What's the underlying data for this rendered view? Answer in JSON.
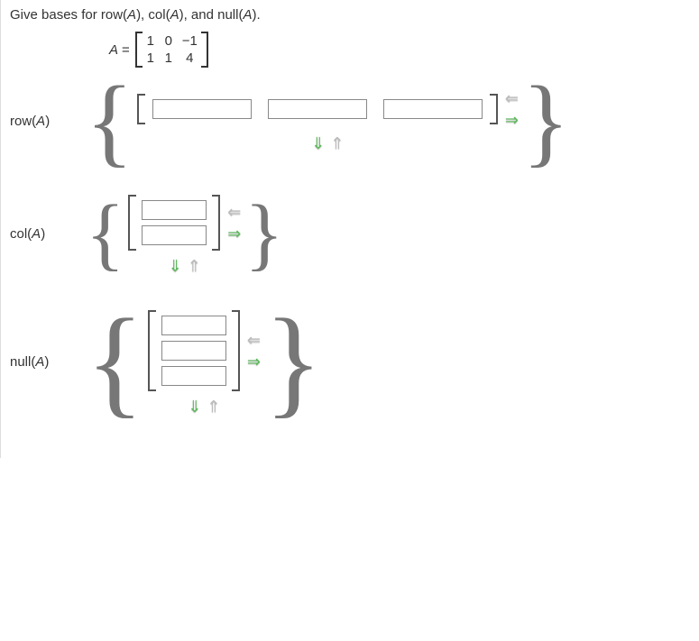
{
  "prompt": {
    "prefix": "Give bases for row(",
    "var1": "A",
    "mid1": "), col(",
    "var2": "A",
    "mid2": "), and null(",
    "var3": "A",
    "suffix": ")."
  },
  "matrixDef": {
    "name": "A",
    "eq": "=",
    "rows": [
      [
        "1",
        "0",
        "−1"
      ],
      [
        "1",
        "1",
        "4"
      ]
    ]
  },
  "sections": {
    "row": {
      "label_pre": "row(",
      "label_var": "A",
      "label_post": ")",
      "inputs": [
        "",
        "",
        ""
      ],
      "arrows_h": {
        "remove": "⇐",
        "add": "⇒"
      },
      "arrows_v": {
        "add": "⇓",
        "remove": "⇑"
      }
    },
    "col": {
      "label_pre": "col(",
      "label_var": "A",
      "label_post": ")",
      "inputs": [
        "",
        ""
      ],
      "arrows_h": {
        "remove": "⇐",
        "add": "⇒"
      },
      "arrows_v": {
        "add": "⇓",
        "remove": "⇑"
      }
    },
    "null": {
      "label_pre": "null(",
      "label_var": "A",
      "label_post": ")",
      "inputs": [
        "",
        "",
        ""
      ],
      "arrows_h": {
        "remove": "⇐",
        "add": "⇒"
      },
      "arrows_v": {
        "add": "⇓",
        "remove": "⇑"
      }
    }
  }
}
